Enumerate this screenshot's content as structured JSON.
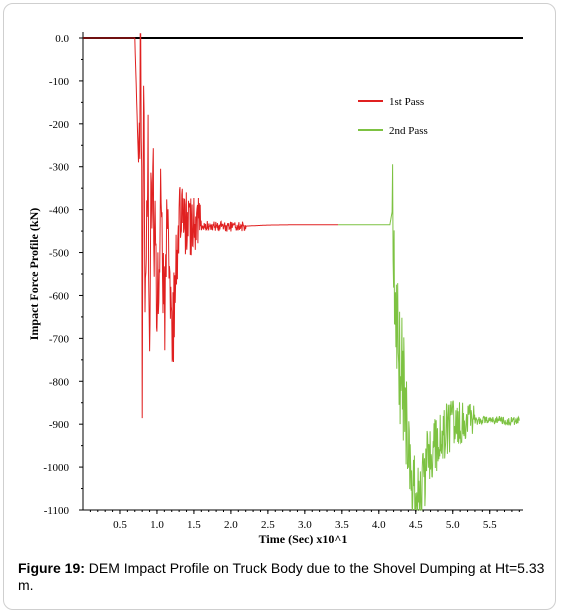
{
  "chart_data": {
    "type": "line",
    "xlabel": "Time (Sec) x10^1",
    "ylabel": "Impact Force Profile (kN)",
    "xlim": [
      0,
      5.95
    ],
    "ylim": [
      -1100,
      0
    ],
    "x_ticks": [
      0.5,
      1.0,
      1.5,
      2.0,
      2.5,
      3.0,
      3.5,
      4.0,
      4.5,
      5.0,
      5.5
    ],
    "x_tick_labels": [
      "0.5",
      "1.0",
      "1.5",
      "2.0",
      "2.5",
      "3.0",
      "3.5",
      "4.0",
      "4.5",
      "5.0",
      "5.5"
    ],
    "y_ticks": [
      0,
      -100,
      -200,
      -300,
      -400,
      -500,
      -600,
      -700,
      -800,
      -900,
      -1000,
      -1100
    ],
    "y_tick_labels": [
      "0.0",
      "-100",
      "-200",
      "-300",
      "-400",
      "-500",
      "-600",
      "-700",
      "-800",
      "-900",
      "-1000",
      "-1100"
    ],
    "legend_position": "top-right",
    "zero_line_color": "#000000",
    "series": [
      {
        "name": "1st Pass",
        "color": "#e02020",
        "x": [
          0.0,
          0.7,
          0.75,
          0.78,
          0.8,
          0.82,
          0.85,
          0.88,
          0.9,
          0.95,
          1.0,
          1.05,
          1.1,
          1.15,
          1.2,
          1.3,
          1.5,
          2.0,
          2.5,
          3.0,
          3.45
        ],
        "y": [
          0,
          0,
          -290,
          10,
          -725,
          -200,
          -650,
          -300,
          -560,
          -330,
          -600,
          -380,
          -640,
          -400,
          -720,
          -440,
          -435,
          -440,
          -436,
          -435,
          -435
        ]
      },
      {
        "name": "2nd Pass",
        "color": "#7dc242",
        "x": [
          3.45,
          4.15,
          4.18,
          4.2,
          4.25,
          4.3,
          4.35,
          4.4,
          4.45,
          4.5,
          4.55,
          4.6,
          4.7,
          4.8,
          5.0,
          5.2,
          5.5,
          5.9
        ],
        "y": [
          -435,
          -435,
          -405,
          -530,
          -700,
          -780,
          -820,
          -950,
          -1060,
          -1090,
          -1100,
          -1030,
          -980,
          -935,
          -900,
          -895,
          -890,
          -892
        ]
      }
    ]
  },
  "caption": {
    "label": "Figure 19:",
    "text": " DEM Impact Profile on Truck Body due to the Shovel Dumping at Ht=5.33 m."
  }
}
